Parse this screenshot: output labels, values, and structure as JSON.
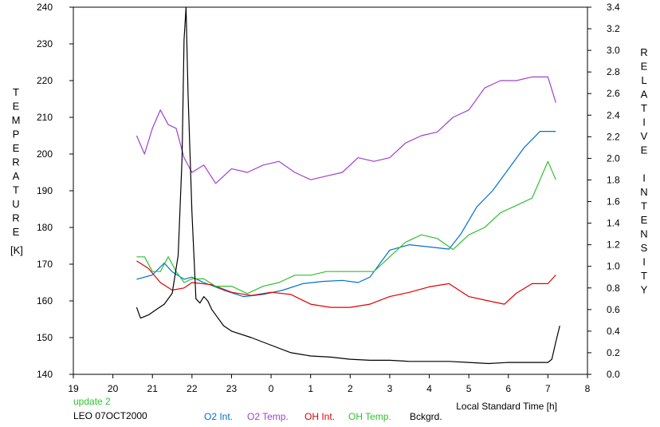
{
  "chart_data": {
    "type": "line",
    "xlabel": "Local Standard Time [h]",
    "ylabel_left": "TEMPERATURE",
    "ylabel_left_unit": "[K]",
    "ylabel_right": "RELATIVE INTENSITY",
    "x_ticks": [
      "19",
      "20",
      "21",
      "22",
      "23",
      "0",
      "1",
      "2",
      "3",
      "4",
      "5",
      "6",
      "7",
      "8"
    ],
    "xlim": [
      19,
      32
    ],
    "ylim_left": [
      140,
      240
    ],
    "yticks_left": [
      "140",
      "150",
      "160",
      "170",
      "180",
      "190",
      "200",
      "210",
      "220",
      "230",
      "240"
    ],
    "ylim_right": [
      0.0,
      3.4
    ],
    "yticks_right": [
      "0.0",
      "0.2",
      "0.4",
      "0.6",
      "0.8",
      "1.0",
      "1.2",
      "1.4",
      "1.6",
      "1.8",
      "2.0",
      "2.2",
      "2.4",
      "2.6",
      "2.8",
      "3.0",
      "3.2",
      "3.4"
    ],
    "notes": {
      "update": "update 2",
      "station": "LEO 07OCT2000"
    },
    "series": [
      {
        "name": "O2 Int.",
        "color": "#0070d0",
        "axis": "right",
        "x": [
          20.6,
          21.0,
          21.3,
          21.5,
          21.8,
          22.0,
          22.3,
          22.8,
          23.3,
          23.8,
          24.3,
          24.8,
          25.3,
          25.8,
          26.2,
          26.5,
          27.0,
          27.5,
          28.0,
          28.5,
          28.8,
          29.2,
          29.6,
          30.0,
          30.4,
          30.8,
          31.2
        ],
        "y": [
          0.88,
          0.92,
          1.03,
          0.95,
          0.88,
          0.9,
          0.85,
          0.78,
          0.72,
          0.74,
          0.78,
          0.84,
          0.86,
          0.87,
          0.85,
          0.9,
          1.15,
          1.2,
          1.18,
          1.16,
          1.3,
          1.55,
          1.7,
          1.9,
          2.1,
          2.25,
          2.25
        ]
      },
      {
        "name": "O2 Temp.",
        "color": "#a040d0",
        "axis": "left",
        "x": [
          20.6,
          20.8,
          21.0,
          21.2,
          21.4,
          21.6,
          21.8,
          22.0,
          22.3,
          22.6,
          23.0,
          23.4,
          23.8,
          24.2,
          24.6,
          25.0,
          25.4,
          25.8,
          26.2,
          26.6,
          27.0,
          27.4,
          27.8,
          28.2,
          28.6,
          29.0,
          29.4,
          29.8,
          30.2,
          30.6,
          31.0,
          31.2
        ],
        "y": [
          205,
          200,
          207,
          212,
          208,
          207,
          199,
          195,
          197,
          192,
          196,
          195,
          197,
          198,
          195,
          193,
          194,
          195,
          199,
          198,
          199,
          203,
          205,
          206,
          210,
          212,
          218,
          220,
          220,
          221,
          221,
          214
        ]
      },
      {
        "name": "OH Int.",
        "color": "#e00000",
        "axis": "right",
        "x": [
          20.6,
          20.9,
          21.2,
          21.5,
          21.8,
          22.0,
          22.5,
          23.0,
          23.5,
          24.0,
          24.5,
          25.0,
          25.5,
          26.0,
          26.5,
          27.0,
          27.5,
          28.0,
          28.5,
          29.0,
          29.5,
          29.9,
          30.2,
          30.6,
          31.0,
          31.2
        ],
        "y": [
          1.05,
          0.98,
          0.85,
          0.78,
          0.8,
          0.85,
          0.83,
          0.76,
          0.73,
          0.76,
          0.74,
          0.65,
          0.62,
          0.62,
          0.65,
          0.72,
          0.76,
          0.81,
          0.84,
          0.72,
          0.68,
          0.65,
          0.75,
          0.84,
          0.84,
          0.92
        ]
      },
      {
        "name": "OH Temp.",
        "color": "#30c030",
        "axis": "left",
        "x": [
          20.6,
          20.8,
          21.0,
          21.2,
          21.4,
          21.6,
          21.8,
          22.0,
          22.3,
          22.6,
          23.0,
          23.4,
          23.8,
          24.2,
          24.6,
          25.0,
          25.4,
          25.8,
          26.2,
          26.6,
          27.0,
          27.4,
          27.8,
          28.2,
          28.6,
          29.0,
          29.4,
          29.8,
          30.2,
          30.6,
          31.0,
          31.2
        ],
        "y": [
          172,
          172,
          168,
          168,
          172,
          168,
          165,
          166,
          166,
          164,
          164,
          162,
          164,
          165,
          167,
          167,
          168,
          168,
          168,
          168,
          172,
          176,
          178,
          177,
          174,
          178,
          180,
          184,
          186,
          188,
          198,
          193
        ]
      },
      {
        "name": "Bckgrd.",
        "color": "#000000",
        "axis": "right",
        "x": [
          20.6,
          20.7,
          20.9,
          21.1,
          21.3,
          21.5,
          21.65,
          21.75,
          21.8,
          21.85,
          21.9,
          22.0,
          22.1,
          22.2,
          22.3,
          22.4,
          22.5,
          22.8,
          23.0,
          23.5,
          24.0,
          24.5,
          25.0,
          25.5,
          26.0,
          26.5,
          27.0,
          27.5,
          28.0,
          28.5,
          29.0,
          29.5,
          30.0,
          30.5,
          31.0,
          31.1,
          31.2,
          31.3
        ],
        "y": [
          0.62,
          0.52,
          0.55,
          0.6,
          0.65,
          0.75,
          1.1,
          2.0,
          3.1,
          3.4,
          2.6,
          1.5,
          0.7,
          0.66,
          0.72,
          0.68,
          0.6,
          0.45,
          0.4,
          0.34,
          0.27,
          0.2,
          0.17,
          0.16,
          0.14,
          0.13,
          0.13,
          0.12,
          0.12,
          0.12,
          0.11,
          0.1,
          0.11,
          0.11,
          0.11,
          0.14,
          0.3,
          0.45
        ]
      }
    ]
  }
}
